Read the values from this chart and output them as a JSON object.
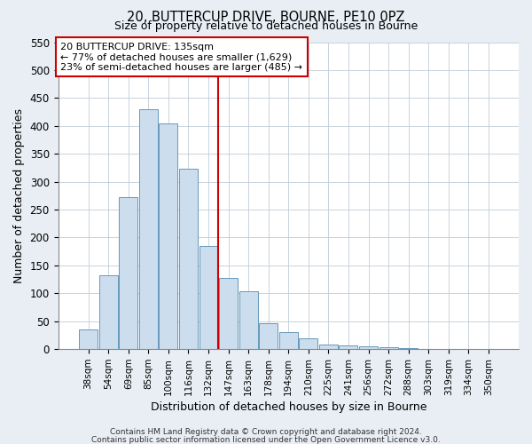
{
  "title": "20, BUTTERCUP DRIVE, BOURNE, PE10 0PZ",
  "subtitle": "Size of property relative to detached houses in Bourne",
  "xlabel": "Distribution of detached houses by size in Bourne",
  "ylabel": "Number of detached properties",
  "bar_labels": [
    "38sqm",
    "54sqm",
    "69sqm",
    "85sqm",
    "100sqm",
    "116sqm",
    "132sqm",
    "147sqm",
    "163sqm",
    "178sqm",
    "194sqm",
    "210sqm",
    "225sqm",
    "241sqm",
    "256sqm",
    "272sqm",
    "288sqm",
    "303sqm",
    "319sqm",
    "334sqm",
    "350sqm"
  ],
  "bar_values": [
    35,
    133,
    272,
    430,
    405,
    323,
    185,
    128,
    103,
    46,
    30,
    20,
    8,
    7,
    5,
    3,
    2,
    1,
    1,
    1,
    1
  ],
  "bar_color": "#ccdded",
  "bar_edgecolor": "#6699bb",
  "vline_color": "#cc0000",
  "annotation_title": "20 BUTTERCUP DRIVE: 135sqm",
  "annotation_line1": "← 77% of detached houses are smaller (1,629)",
  "annotation_line2": "23% of semi-detached houses are larger (485) →",
  "annotation_box_color": "white",
  "annotation_box_edgecolor": "#cc0000",
  "ylim": [
    0,
    550
  ],
  "yticks": [
    0,
    50,
    100,
    150,
    200,
    250,
    300,
    350,
    400,
    450,
    500,
    550
  ],
  "footer1": "Contains HM Land Registry data © Crown copyright and database right 2024.",
  "footer2": "Contains public sector information licensed under the Open Government Licence v3.0.",
  "bg_color": "#e8eef4",
  "plot_bg_color": "#ffffff"
}
